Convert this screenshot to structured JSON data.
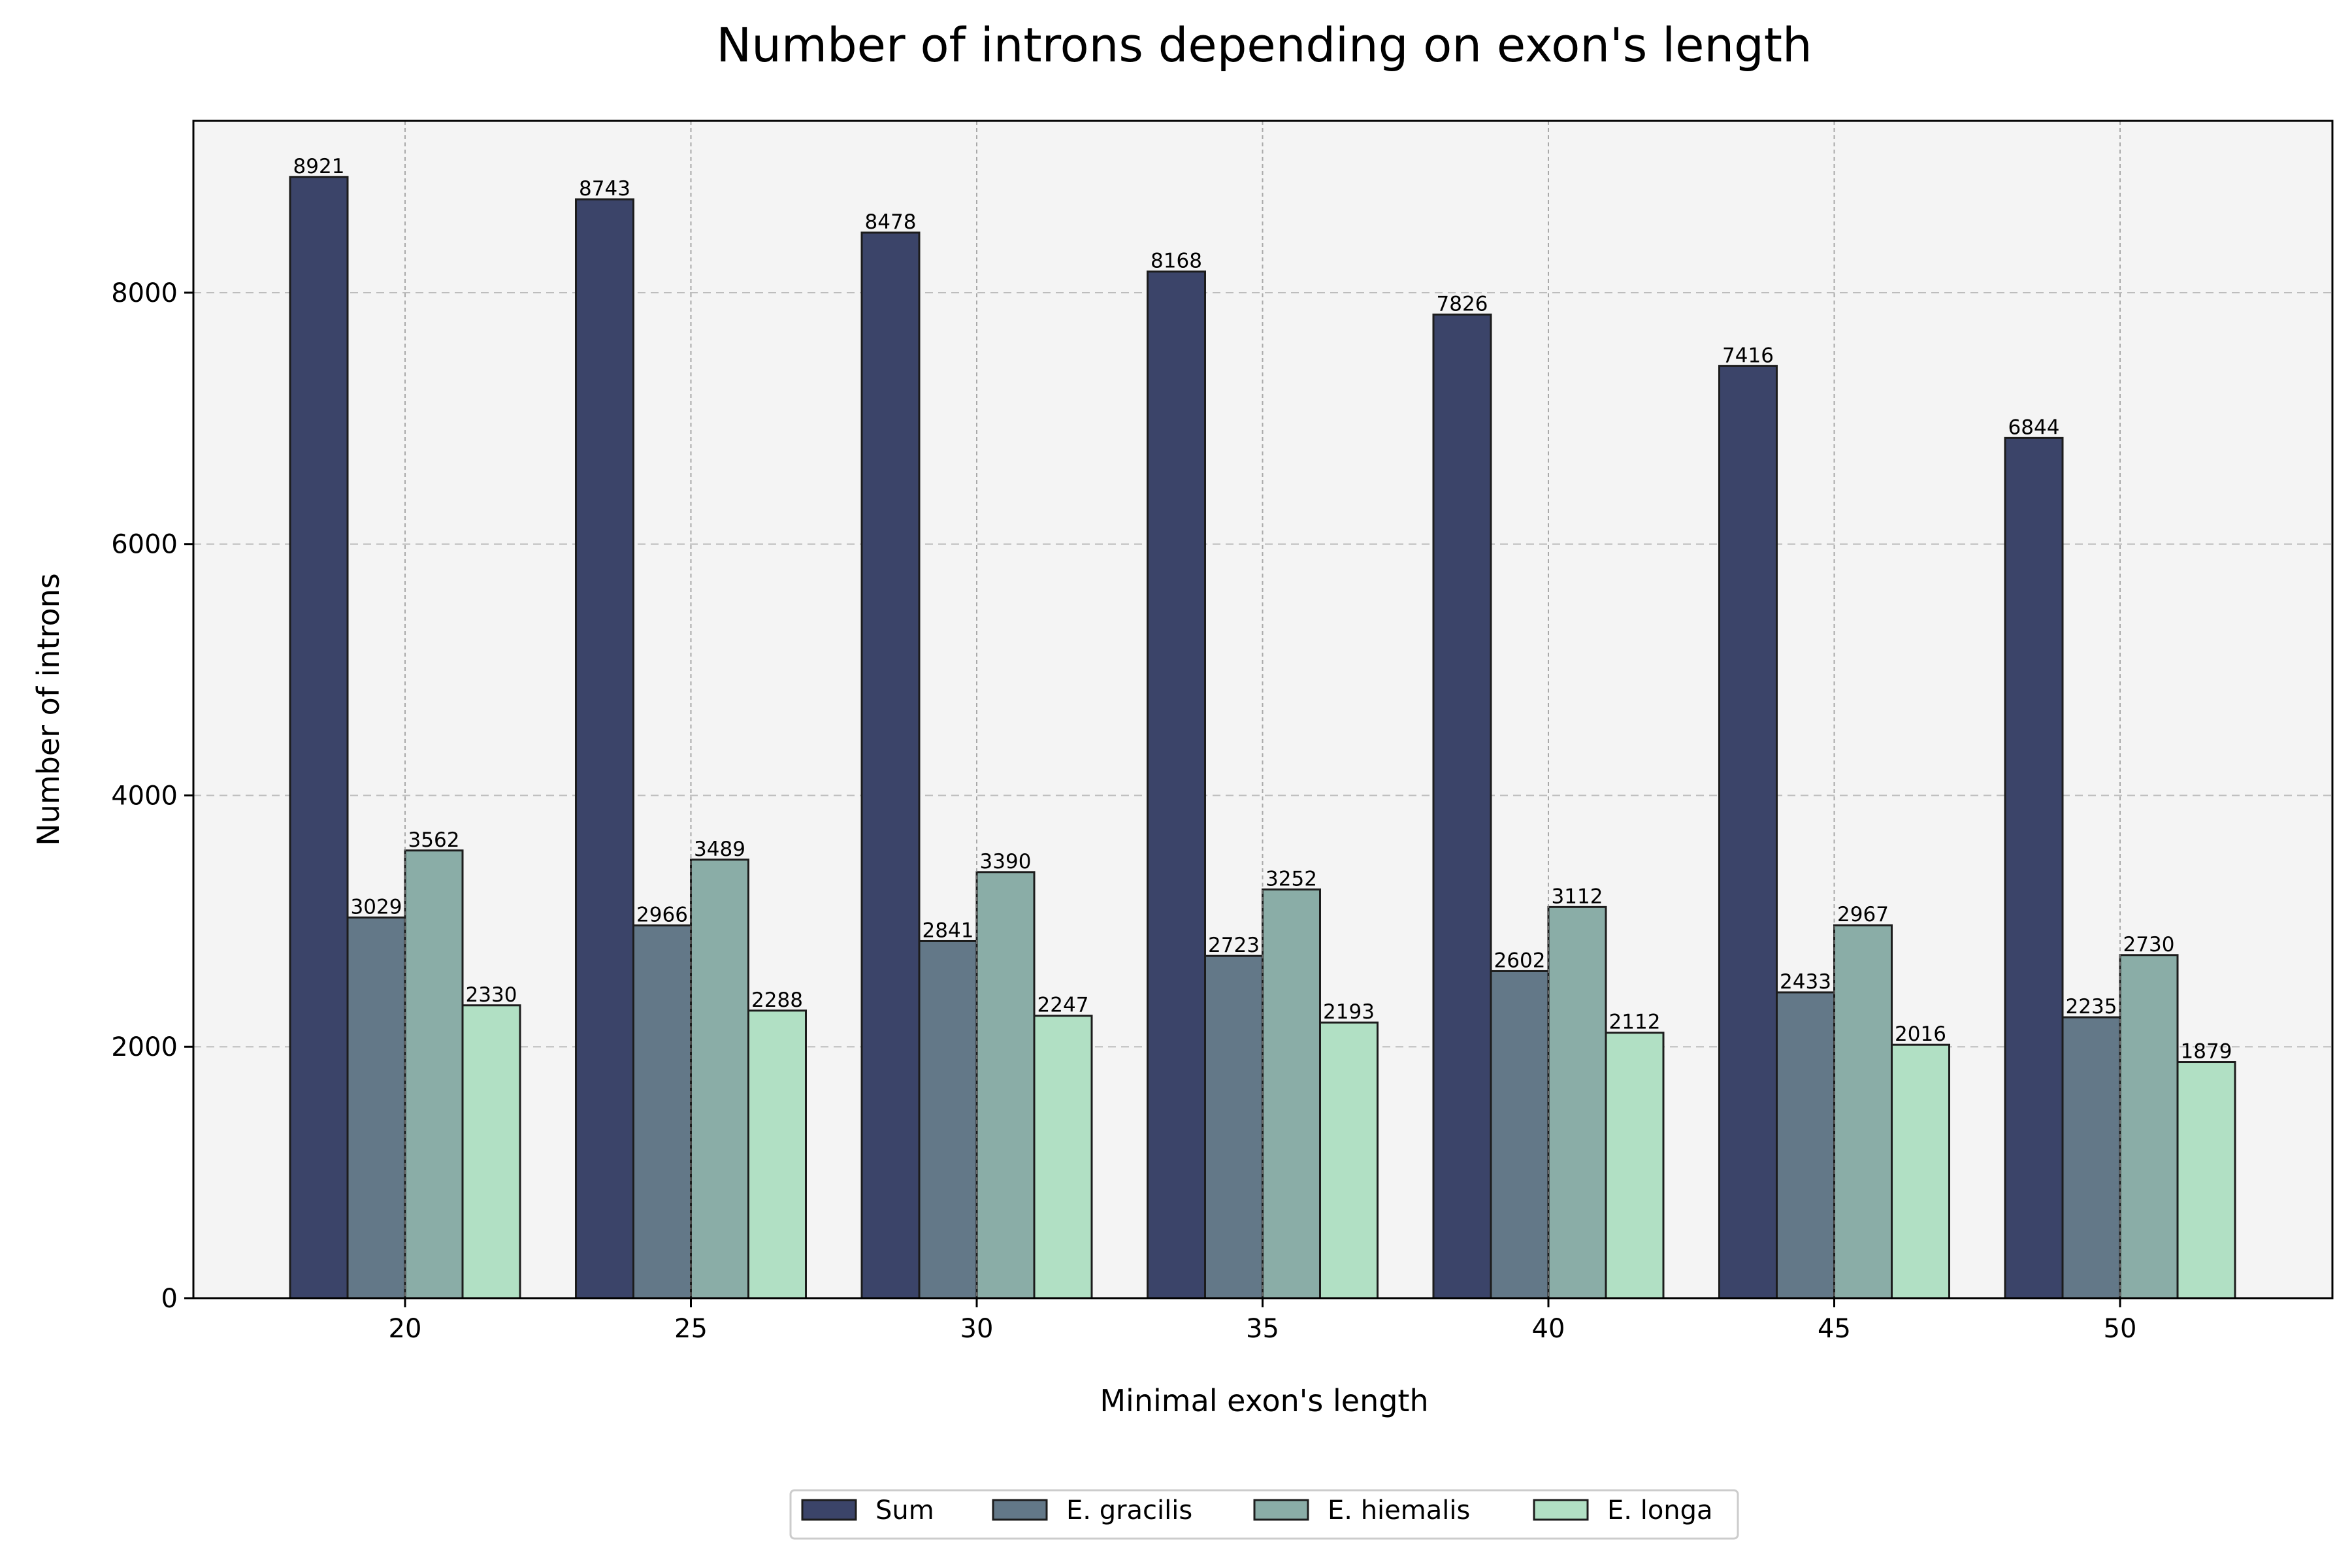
{
  "chart_data": {
    "type": "bar",
    "title": "Number of introns depending on exon's length",
    "xlabel": "Minimal exon's length",
    "ylabel": "Number of introns",
    "categories": [
      "20",
      "25",
      "30",
      "35",
      "40",
      "45",
      "50"
    ],
    "yticks": [
      "0",
      "2000",
      "4000",
      "6000",
      "8000"
    ],
    "ylim": [
      0,
      9367
    ],
    "grid": true,
    "legend_position": "bottom-center",
    "background": "#f4f4f4",
    "series": [
      {
        "name": "Sum",
        "color": "#3b4469",
        "values": [
          8921,
          8743,
          8478,
          8168,
          7826,
          7416,
          6844
        ]
      },
      {
        "name": "E. gracilis",
        "color": "#637888",
        "values": [
          3029,
          2966,
          2841,
          2723,
          2602,
          2433,
          2235
        ]
      },
      {
        "name": "E. hiemalis",
        "color": "#8aada7",
        "values": [
          3562,
          3489,
          3390,
          3252,
          3112,
          2967,
          2730
        ]
      },
      {
        "name": "E. longa",
        "color": "#b1e0c4",
        "values": [
          2330,
          2288,
          2247,
          2193,
          2112,
          2016,
          1879
        ]
      }
    ]
  }
}
